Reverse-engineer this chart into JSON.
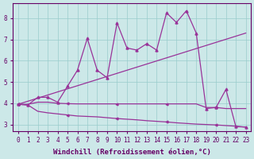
{
  "xlabel": "Windchill (Refroidissement éolien,°C)",
  "background_color": "#cce8e8",
  "grid_color": "#99cccc",
  "line_color": "#993399",
  "xlim": [
    -0.5,
    23.5
  ],
  "ylim": [
    2.7,
    8.7
  ],
  "xticks": [
    0,
    1,
    2,
    3,
    4,
    5,
    6,
    7,
    8,
    9,
    10,
    11,
    12,
    13,
    14,
    15,
    16,
    17,
    18,
    19,
    20,
    21,
    22,
    23
  ],
  "yticks": [
    3,
    4,
    5,
    6,
    7,
    8
  ],
  "jagged_x": [
    0,
    1,
    2,
    3,
    4,
    5,
    6,
    7,
    8,
    9,
    10,
    11,
    12,
    13,
    14,
    15,
    16,
    17,
    18,
    19,
    20,
    21,
    22,
    23
  ],
  "jagged_y": [
    3.95,
    3.92,
    4.28,
    4.28,
    4.05,
    4.8,
    5.55,
    7.05,
    5.55,
    5.2,
    7.78,
    6.6,
    6.5,
    6.8,
    6.5,
    8.25,
    7.8,
    8.35,
    7.3,
    3.75,
    3.8,
    4.65,
    2.9,
    2.88
  ],
  "trend1_x": [
    0,
    23
  ],
  "trend1_y": [
    3.95,
    7.3
  ],
  "flat_x": [
    0,
    1,
    2,
    3,
    4,
    5,
    6,
    7,
    8,
    9,
    10,
    11,
    12,
    13,
    14,
    15,
    16,
    17,
    18,
    19,
    20,
    21,
    22,
    23
  ],
  "flat_y": [
    3.95,
    3.95,
    4.05,
    4.05,
    4.0,
    3.98,
    3.97,
    3.97,
    3.97,
    3.97,
    3.97,
    3.97,
    3.97,
    3.97,
    3.97,
    3.97,
    3.97,
    3.97,
    3.97,
    3.8,
    3.8,
    3.75,
    3.75,
    3.75
  ],
  "desc_x": [
    0,
    1,
    2,
    3,
    4,
    5,
    6,
    7,
    8,
    9,
    10,
    11,
    12,
    13,
    14,
    15,
    16,
    17,
    18,
    19,
    20,
    21,
    22,
    23
  ],
  "desc_y": [
    3.95,
    3.92,
    3.62,
    3.55,
    3.5,
    3.45,
    3.4,
    3.38,
    3.36,
    3.32,
    3.28,
    3.25,
    3.22,
    3.18,
    3.15,
    3.12,
    3.08,
    3.05,
    3.02,
    3.0,
    2.98,
    2.95,
    2.92,
    2.88
  ],
  "font_family": "monospace",
  "xlabel_fontsize": 6.5,
  "tick_fontsize": 5.5,
  "tick_color": "#660066",
  "label_color": "#660066"
}
